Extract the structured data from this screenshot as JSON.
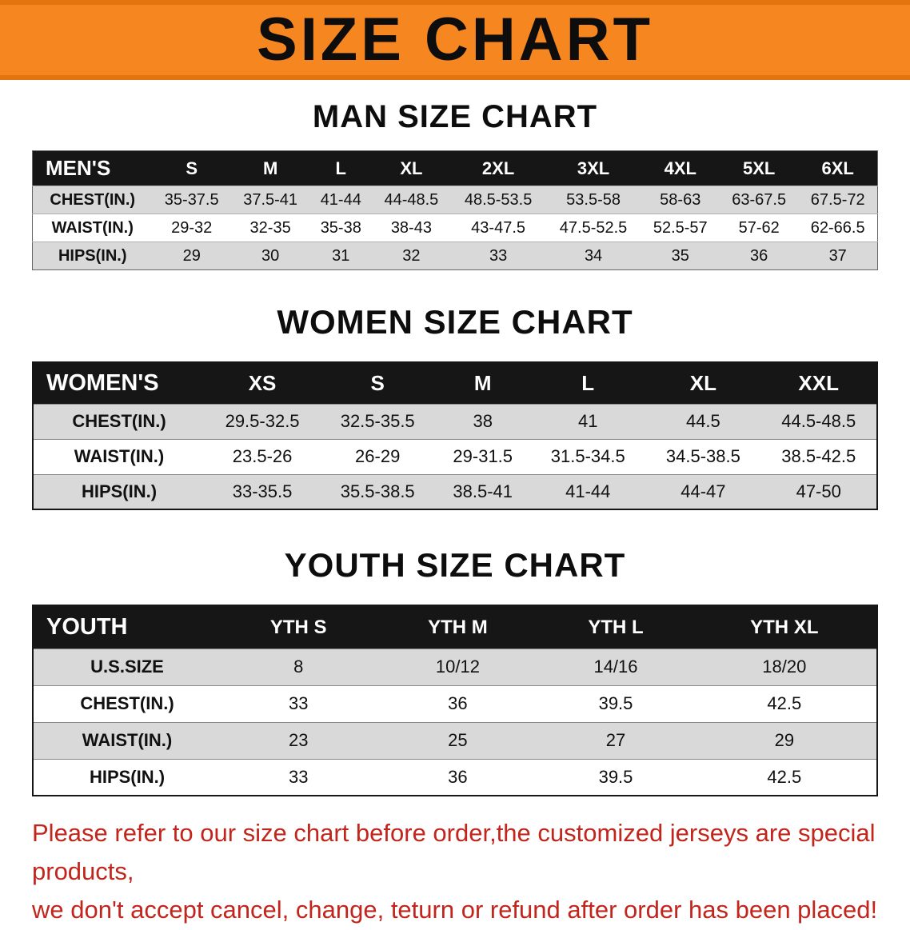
{
  "colors": {
    "banner_orange": "#f6861f",
    "banner_orange_dark": "#e2750e",
    "header_black": "#161616",
    "row_gray": "#d9d9d9",
    "disclaimer_red": "#c1251c"
  },
  "banner": {
    "title": "SIZE CHART"
  },
  "sections": {
    "men": {
      "heading": "MAN SIZE CHART",
      "table": {
        "header": [
          "MEN'S",
          "S",
          "M",
          "L",
          "XL",
          "2XL",
          "3XL",
          "4XL",
          "5XL",
          "6XL"
        ],
        "rows": [
          [
            "CHEST(IN.)",
            "35-37.5",
            "37.5-41",
            "41-44",
            "44-48.5",
            "48.5-53.5",
            "53.5-58",
            "58-63",
            "63-67.5",
            "67.5-72"
          ],
          [
            "WAIST(IN.)",
            "29-32",
            "32-35",
            "35-38",
            "38-43",
            "43-47.5",
            "47.5-52.5",
            "52.5-57",
            "57-62",
            "62-66.5"
          ],
          [
            "HIPS(IN.)",
            "29",
            "30",
            "31",
            "32",
            "33",
            "34",
            "35",
            "36",
            "37"
          ]
        ]
      }
    },
    "women": {
      "heading": "WOMEN SIZE CHART",
      "table": {
        "header": [
          "WOMEN'S",
          "XS",
          "S",
          "M",
          "L",
          "XL",
          "XXL"
        ],
        "rows": [
          [
            "CHEST(IN.)",
            "29.5-32.5",
            "32.5-35.5",
            "38",
            "41",
            "44.5",
            "44.5-48.5"
          ],
          [
            "WAIST(IN.)",
            "23.5-26",
            "26-29",
            "29-31.5",
            "31.5-34.5",
            "34.5-38.5",
            "38.5-42.5"
          ],
          [
            "HIPS(IN.)",
            "33-35.5",
            "35.5-38.5",
            "38.5-41",
            "41-44",
            "44-47",
            "47-50"
          ]
        ]
      }
    },
    "youth": {
      "heading": "YOUTH SIZE CHART",
      "table": {
        "header": [
          "YOUTH",
          "YTH S",
          "YTH M",
          "YTH L",
          "YTH XL"
        ],
        "rows": [
          [
            "U.S.SIZE",
            "8",
            "10/12",
            "14/16",
            "18/20"
          ],
          [
            "CHEST(IN.)",
            "33",
            "36",
            "39.5",
            "42.5"
          ],
          [
            "WAIST(IN.)",
            "23",
            "25",
            "27",
            "29"
          ],
          [
            "HIPS(IN.)",
            "33",
            "36",
            "39.5",
            "42.5"
          ]
        ]
      }
    }
  },
  "disclaimer": {
    "line1": "Please refer to our size chart before order,the customized jerseys are special products,",
    "line2": "we don't accept cancel, change, teturn or refund after order has been placed!"
  }
}
